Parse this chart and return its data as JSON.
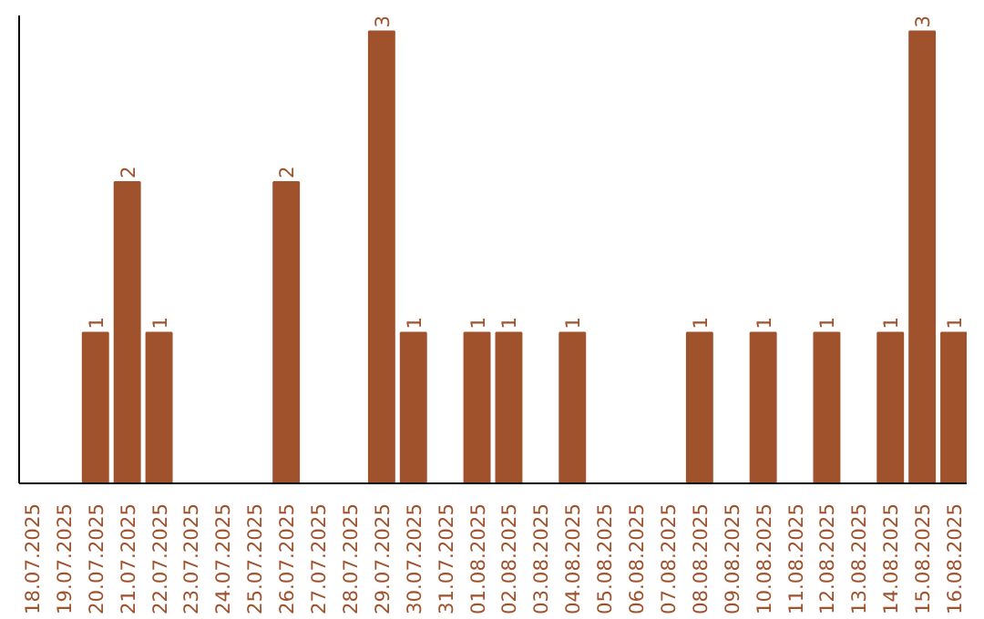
{
  "chart_data": {
    "type": "bar",
    "categories": [
      "18.07.2025",
      "19.07.2025",
      "20.07.2025",
      "21.07.2025",
      "22.07.2025",
      "23.07.2025",
      "24.07.2025",
      "25.07.2025",
      "26.07.2025",
      "27.07.2025",
      "28.07.2025",
      "29.07.2025",
      "30.07.2025",
      "31.07.2025",
      "01.08.2025",
      "02.08.2025",
      "03.08.2025",
      "04.08.2025",
      "05.08.2025",
      "06.08.2025",
      "07.08.2025",
      "08.08.2025",
      "09.08.2025",
      "10.08.2025",
      "11.08.2025",
      "12.08.2025",
      "13.08.2025",
      "14.08.2025",
      "15.08.2025",
      "16.08.2025"
    ],
    "values": [
      0,
      0,
      1,
      2,
      1,
      0,
      0,
      0,
      2,
      0,
      0,
      3,
      1,
      0,
      1,
      1,
      0,
      1,
      0,
      0,
      0,
      1,
      0,
      1,
      0,
      1,
      0,
      1,
      3,
      1
    ],
    "value_labels": [
      null,
      null,
      "1",
      "2",
      "1",
      null,
      null,
      null,
      "2",
      null,
      null,
      "3",
      "1",
      null,
      "1",
      "1",
      null,
      "1",
      null,
      null,
      null,
      "1",
      null,
      "1",
      null,
      "1",
      null,
      "1",
      "3",
      "1"
    ],
    "color": "#a0522d",
    "grid": false
  }
}
